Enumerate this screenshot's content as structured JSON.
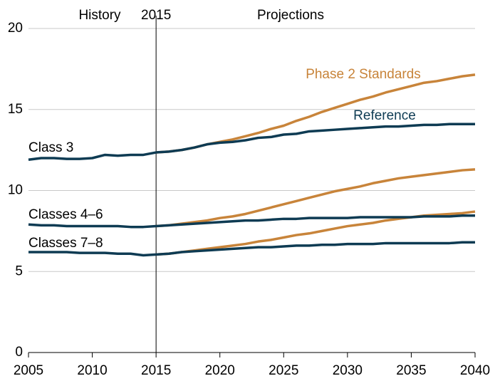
{
  "chart_data": {
    "type": "line",
    "x": [
      2005,
      2006,
      2007,
      2008,
      2009,
      2010,
      2011,
      2012,
      2013,
      2014,
      2015,
      2016,
      2017,
      2018,
      2019,
      2020,
      2021,
      2022,
      2023,
      2024,
      2025,
      2026,
      2027,
      2028,
      2029,
      2030,
      2031,
      2032,
      2033,
      2034,
      2035,
      2036,
      2037,
      2038,
      2039,
      2040
    ],
    "series": [
      {
        "color": "#c8843a",
        "values": [
          null,
          null,
          null,
          null,
          null,
          null,
          null,
          null,
          null,
          null,
          12.35,
          12.4,
          12.5,
          12.65,
          12.85,
          13.0,
          13.15,
          13.35,
          13.55,
          13.8,
          14.0,
          14.3,
          14.55,
          14.85,
          15.1,
          15.35,
          15.6,
          15.8,
          16.05,
          16.25,
          16.45,
          16.65,
          16.75,
          16.9,
          17.05,
          17.15
        ]
      },
      {
        "color": "#c8843a",
        "values": [
          null,
          null,
          null,
          null,
          null,
          null,
          null,
          null,
          null,
          null,
          7.8,
          7.85,
          7.95,
          8.05,
          8.15,
          8.3,
          8.4,
          8.55,
          8.75,
          8.95,
          9.15,
          9.35,
          9.55,
          9.75,
          9.95,
          10.1,
          10.25,
          10.45,
          10.6,
          10.75,
          10.85,
          10.95,
          11.05,
          11.15,
          11.25,
          11.3
        ]
      },
      {
        "color": "#c8843a",
        "values": [
          null,
          null,
          null,
          null,
          null,
          null,
          null,
          null,
          null,
          null,
          6.05,
          6.1,
          6.2,
          6.3,
          6.4,
          6.5,
          6.6,
          6.7,
          6.85,
          6.95,
          7.1,
          7.25,
          7.35,
          7.5,
          7.65,
          7.8,
          7.9,
          8.0,
          8.15,
          8.25,
          8.35,
          8.45,
          8.5,
          8.55,
          8.6,
          8.7
        ]
      },
      {
        "color": "#0e3b53",
        "values": [
          11.9,
          12.0,
          12.0,
          11.95,
          11.95,
          12.0,
          12.2,
          12.15,
          12.2,
          12.2,
          12.35,
          12.4,
          12.5,
          12.65,
          12.85,
          12.95,
          13.0,
          13.1,
          13.25,
          13.3,
          13.45,
          13.5,
          13.65,
          13.7,
          13.75,
          13.8,
          13.85,
          13.9,
          13.95,
          13.95,
          14.0,
          14.05,
          14.05,
          14.1,
          14.1,
          14.1
        ]
      },
      {
        "color": "#0e3b53",
        "values": [
          7.9,
          7.85,
          7.85,
          7.8,
          7.8,
          7.8,
          7.8,
          7.8,
          7.75,
          7.75,
          7.8,
          7.85,
          7.9,
          7.95,
          8.0,
          8.05,
          8.1,
          8.15,
          8.15,
          8.2,
          8.25,
          8.25,
          8.3,
          8.3,
          8.3,
          8.3,
          8.35,
          8.35,
          8.35,
          8.35,
          8.35,
          8.4,
          8.4,
          8.4,
          8.45,
          8.45
        ]
      },
      {
        "color": "#0e3b53",
        "values": [
          6.2,
          6.2,
          6.2,
          6.2,
          6.15,
          6.15,
          6.15,
          6.1,
          6.1,
          6.0,
          6.05,
          6.1,
          6.2,
          6.25,
          6.3,
          6.35,
          6.4,
          6.45,
          6.5,
          6.5,
          6.55,
          6.6,
          6.6,
          6.65,
          6.65,
          6.7,
          6.7,
          6.7,
          6.75,
          6.75,
          6.75,
          6.75,
          6.75,
          6.75,
          6.8,
          6.8
        ]
      }
    ],
    "xlim": [
      2005,
      2040
    ],
    "xticks": [
      2005,
      2010,
      2015,
      2020,
      2025,
      2030,
      2035,
      2040
    ],
    "ylim": [
      0,
      20
    ],
    "yticks": [
      0,
      5,
      10,
      15,
      20
    ],
    "grid": true,
    "divider": {
      "value": 2015,
      "label": "2015"
    },
    "annotations": [
      "History",
      "Projections",
      "Phase 2 Standards",
      "Reference",
      "Class 3",
      "Classes 4–6",
      "Classes 7–8"
    ]
  }
}
